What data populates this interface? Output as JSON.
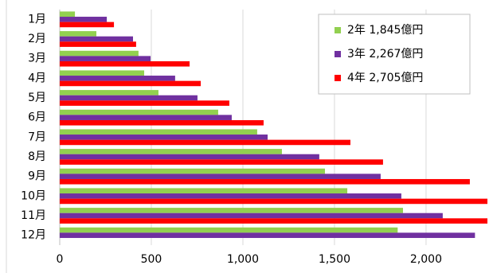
{
  "chart_data": {
    "type": "bar",
    "orientation": "horizontal",
    "categories": [
      "1月",
      "2月",
      "3月",
      "4月",
      "5月",
      "6月",
      "7月",
      "8月",
      "9月",
      "10月",
      "11月",
      "12月"
    ],
    "series": [
      {
        "name": "2年 1,845億円",
        "color": "#92d050",
        "values": [
          83,
          200,
          430,
          461,
          539,
          865,
          1078,
          1213,
          1448,
          1570,
          1874,
          1845
        ]
      },
      {
        "name": "3年 2,267億円",
        "color": "#7030a0",
        "values": [
          257,
          400,
          496,
          630,
          752,
          939,
          1135,
          1417,
          1752,
          1865,
          2091,
          2267
        ]
      },
      {
        "name": "4年 2,705億円",
        "color": "#ff0000",
        "values": [
          296,
          417,
          709,
          770,
          926,
          1113,
          1587,
          1765,
          2239,
          2335,
          2335,
          null
        ]
      }
    ],
    "xlim": [
      0,
      2335
    ],
    "xticks": [
      0,
      500,
      {
        "value": 1000,
        "label": "1,000"
      },
      {
        "value": 1500,
        "label": "1,500"
      },
      {
        "value": 2000,
        "label": "2,000"
      }
    ],
    "grid": true,
    "legend": "top-right"
  }
}
